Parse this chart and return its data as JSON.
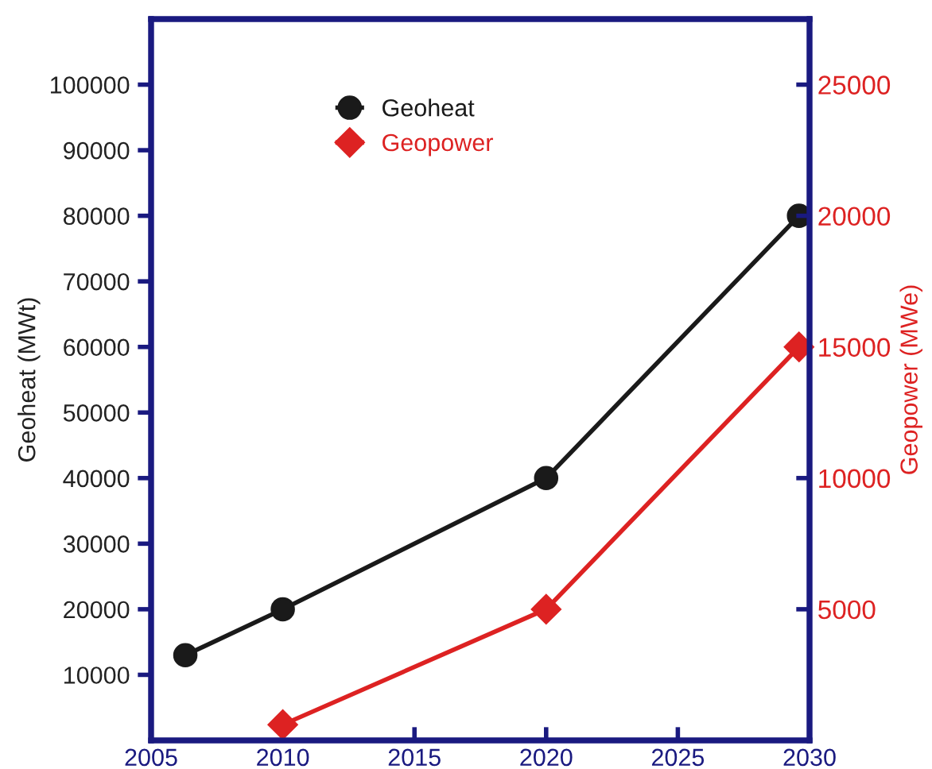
{
  "chart_data": {
    "type": "line",
    "xlabel": null,
    "ylabel": "Geoheat (MWt)",
    "y2label": "Geopower (MWe)",
    "xlim": [
      2005,
      2030
    ],
    "xticks": [
      2005,
      2010,
      2015,
      2020,
      2025,
      2030
    ],
    "ylim": [
      0,
      110000
    ],
    "yticks": [
      10000,
      20000,
      30000,
      40000,
      50000,
      60000,
      70000,
      80000,
      90000,
      100000
    ],
    "y2lim": [
      0,
      27500
    ],
    "y2ticks": [
      5000,
      10000,
      15000,
      20000,
      25000
    ],
    "legend": "top left",
    "grid": false,
    "series": [
      {
        "name": "Geoheat",
        "color": "#1a1a1a",
        "marker": "circle",
        "x": [
          2006.3,
          2010,
          2020,
          2029.6
        ],
        "values": [
          13000,
          20000,
          40000,
          80000
        ]
      },
      {
        "name": "Geopower",
        "color": "#dd2222",
        "marker": "diamond",
        "axis": "y2",
        "x": [
          2010,
          2020,
          2029.6
        ],
        "values": [
          600,
          5000,
          15000
        ]
      }
    ]
  }
}
